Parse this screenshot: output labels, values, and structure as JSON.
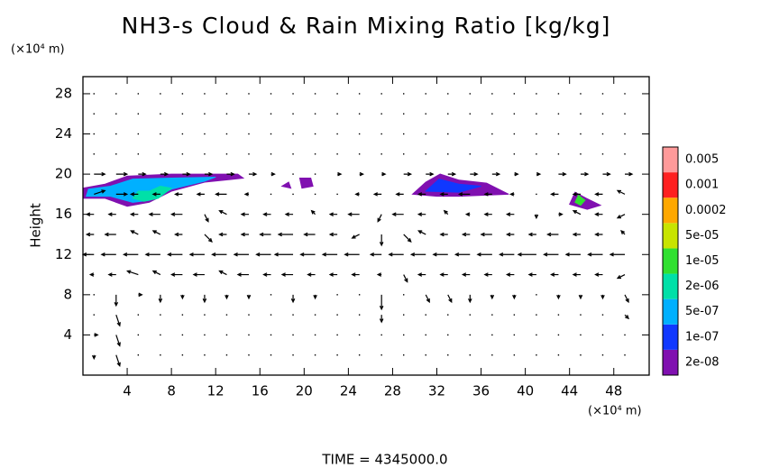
{
  "chart_data": {
    "type": "contour",
    "title": "NH3-s Cloud & Rain Mixing Ratio [kg/kg]",
    "y_label": "Height",
    "y_unit": "(×10⁴ m)",
    "x_unit": "(×10⁴ m)",
    "footer": "TIME  =  4345000.0",
    "xlim": [
      0,
      51.2
    ],
    "ylim": [
      0,
      29.7
    ],
    "xticks": [
      4,
      8,
      12,
      16,
      20,
      24,
      28,
      32,
      36,
      40,
      44,
      48
    ],
    "yticks": [
      4,
      8,
      12,
      16,
      20,
      24,
      28
    ],
    "levels": [
      {
        "value": 2e-08,
        "label": "2e-08"
      },
      {
        "value": 1e-07,
        "label": "1e-07"
      },
      {
        "value": 5e-07,
        "label": "5e-07"
      },
      {
        "value": 2e-06,
        "label": "2e-06"
      },
      {
        "value": 1e-05,
        "label": "1e-05"
      },
      {
        "value": 5e-05,
        "label": "5e-05"
      },
      0.0002,
      0.001,
      0.005
    ],
    "colors": [
      "#8010b0",
      "#1038ff",
      "#00b0ff",
      "#00e0a8",
      "#30e030",
      "#c8e400",
      "#ffa800",
      "#ff2020",
      "#ff9a9a"
    ],
    "clouds": [
      {
        "value": 2e-08,
        "x": [
          0,
          0,
          2,
          4,
          8,
          14,
          14.5,
          11,
          8,
          6,
          4,
          2
        ],
        "y": [
          17.6,
          18.6,
          19,
          19.8,
          20,
          20,
          19.6,
          19.2,
          18.3,
          17.2,
          16.8,
          17.6
        ]
      },
      {
        "value": 5e-07,
        "x": [
          0.3,
          0.5,
          2.5,
          4.5,
          8,
          12,
          11,
          8,
          6,
          4.5,
          2.5
        ],
        "y": [
          17.8,
          18.5,
          18.8,
          19.5,
          19.6,
          19.7,
          19.3,
          18.5,
          17.4,
          17.2,
          17.8
        ]
      },
      {
        "value": 2e-06,
        "x": [
          4.5,
          5,
          6,
          7,
          8,
          6.8,
          5.5
        ],
        "y": [
          17.6,
          18.3,
          18.3,
          18.8,
          18.6,
          17.6,
          17.3
        ]
      },
      {
        "value": 2e-08,
        "x": [
          18,
          18.6,
          18.8
        ],
        "y": [
          18.8,
          19.2,
          18.6
        ]
      },
      {
        "value": 2e-08,
        "x": [
          19.6,
          20.6,
          20.8,
          19.8
        ],
        "y": [
          19.6,
          19.6,
          18.8,
          18.6
        ]
      },
      {
        "value": 2e-08,
        "x": [
          29.8,
          31,
          32.3,
          34,
          36.5,
          38.5,
          34,
          32
        ],
        "y": [
          18,
          19.2,
          20,
          19.4,
          19.1,
          18,
          17.8,
          17.8
        ]
      },
      {
        "value": 1e-07,
        "x": [
          31,
          32.2,
          34,
          36,
          34
        ],
        "y": [
          18.3,
          19.5,
          19,
          18.8,
          18.2
        ]
      },
      {
        "value": 2e-08,
        "x": [
          44,
          44.5,
          45.5,
          46.8,
          45.6
        ],
        "y": [
          17,
          18.2,
          17.6,
          16.9,
          16.5
        ]
      },
      {
        "value": 1e-05,
        "x": [
          44.5,
          44.8,
          45.4,
          45
        ],
        "y": [
          17.2,
          17.9,
          17.4,
          16.9
        ]
      }
    ],
    "vectors": {
      "x": [
        1,
        3,
        5,
        7,
        9,
        11,
        13,
        15,
        17,
        19,
        21,
        23,
        25,
        27,
        29,
        31,
        33,
        35,
        37,
        39,
        41,
        43,
        45,
        47,
        49
      ],
      "y": [
        2,
        4,
        6,
        8,
        10,
        12,
        14,
        16,
        18,
        20,
        22,
        24,
        26,
        28
      ],
      "u": [
        [
          0,
          0.5,
          0,
          0,
          0,
          0,
          0,
          0,
          0,
          0,
          0,
          0,
          0,
          0,
          0,
          0,
          0,
          0,
          0,
          0,
          0,
          0,
          0,
          0,
          0
        ],
        [
          0.5,
          0.5,
          0,
          0,
          0,
          0,
          0,
          0,
          0,
          0,
          0,
          0,
          0,
          0,
          0,
          0,
          0,
          0,
          0,
          0,
          0,
          0,
          0,
          0,
          0
        ],
        [
          0,
          0.5,
          0,
          0,
          0,
          0,
          0,
          0,
          0,
          0,
          0,
          0,
          0,
          0,
          0,
          0,
          0,
          0,
          0,
          0,
          0,
          0,
          0,
          0,
          0.5
        ],
        [
          0,
          0,
          0.5,
          0,
          0,
          0,
          0,
          0,
          0,
          0,
          0,
          0,
          0,
          0,
          0,
          0.5,
          0.5,
          0,
          0,
          0,
          0,
          0,
          0,
          0,
          0.5
        ],
        [
          -0.5,
          -1,
          -1.5,
          -1,
          -1.5,
          -1.5,
          -1,
          -1.5,
          -1,
          -1.5,
          -1,
          -1,
          -1,
          -0.5,
          0.5,
          -1,
          -1,
          -1,
          -1,
          -1,
          -1,
          -1,
          -1,
          -1,
          -1
        ],
        [
          -1.5,
          -2,
          -2,
          -2,
          -2,
          -2,
          -2,
          -2,
          -2,
          -2.5,
          -2,
          -2,
          -2,
          -1.5,
          -2,
          -2,
          -2,
          -2,
          -2,
          -2,
          -2.5,
          -2,
          -2,
          -2,
          -2
        ],
        [
          -1,
          -1.5,
          -1,
          -1,
          -1,
          1,
          -1,
          -1,
          -1.5,
          -2,
          -1.5,
          -1,
          -1,
          0,
          1,
          -1,
          -1,
          -1,
          -1.5,
          -1,
          -1,
          -1.5,
          -1,
          -1,
          -0.5
        ],
        [
          -1,
          -1,
          -1,
          -1.5,
          -1.5,
          0.5,
          -1,
          -1,
          -1,
          -1,
          -0.5,
          -1,
          -1.5,
          -0.5,
          -1.5,
          -1,
          -0.5,
          -0.5,
          -1,
          -1,
          0,
          0.5,
          -1,
          -1,
          -1
        ],
        [
          1.5,
          1.5,
          -1,
          -1,
          -1,
          -1,
          -1.5,
          -0.5,
          0,
          0,
          0,
          0,
          -0.5,
          -1,
          -1,
          -1,
          -1,
          -1.5,
          -1,
          -0.5,
          0,
          -1,
          -1,
          -1,
          -1
        ],
        [
          1.5,
          1.5,
          1,
          1,
          1,
          1,
          1,
          1,
          0.5,
          0,
          0,
          0.5,
          0.5,
          0.5,
          1,
          1,
          1,
          1,
          1,
          0.5,
          0.5,
          1,
          1,
          1,
          1
        ],
        [
          0,
          0,
          0,
          0,
          0,
          0,
          0,
          0,
          0,
          0,
          0,
          0,
          0,
          0,
          0,
          0,
          0,
          0,
          0,
          0,
          0,
          0,
          0,
          0,
          0
        ],
        [
          0,
          0,
          0,
          0,
          0,
          0,
          0,
          0,
          0,
          0,
          0,
          0,
          0,
          0,
          0,
          0,
          0,
          0,
          0,
          0,
          0,
          0,
          0,
          0,
          0
        ],
        [
          0,
          0,
          0,
          0,
          0,
          0,
          0,
          0,
          0,
          0,
          0,
          0,
          0,
          0,
          0,
          0,
          0,
          0,
          0,
          0,
          0,
          0,
          0,
          0,
          0
        ],
        [
          0,
          0,
          0,
          0,
          0,
          0,
          0,
          0,
          0,
          0,
          0,
          0,
          0,
          0,
          0,
          0,
          0,
          0,
          0,
          0,
          0,
          0,
          0,
          0,
          0
        ]
      ],
      "v": [
        [
          -0.5,
          -1.5,
          0,
          0,
          0,
          0,
          0,
          0,
          0,
          0,
          0,
          0,
          0,
          0,
          0,
          0,
          0,
          0,
          0,
          0,
          0,
          0,
          0,
          0,
          0
        ],
        [
          0,
          -1.5,
          0,
          0,
          0,
          0,
          0,
          0,
          0,
          0,
          0,
          0,
          0,
          0,
          0,
          0,
          0,
          0,
          0,
          0,
          0,
          0,
          0,
          0,
          0
        ],
        [
          0,
          -1.5,
          0,
          0,
          0,
          0,
          0,
          0,
          0,
          0,
          0,
          0,
          0,
          -1,
          0,
          0,
          0,
          0,
          0,
          0,
          0,
          0,
          0,
          0,
          -0.5
        ],
        [
          0,
          -1.5,
          0,
          -1,
          -0.5,
          -1,
          -0.5,
          -0.5,
          0,
          -1,
          -0.5,
          0,
          0,
          -2,
          0,
          -1,
          -1,
          -1,
          -0.5,
          -0.5,
          0,
          -0.5,
          -0.5,
          -0.5,
          -1
        ],
        [
          0,
          0,
          0.5,
          0.5,
          0,
          0,
          0.5,
          0,
          0,
          0,
          0,
          0,
          0,
          0,
          -1,
          0,
          0,
          0,
          0,
          0,
          0,
          0,
          0,
          0,
          -0.5
        ],
        [
          0,
          0,
          0,
          0,
          0,
          0,
          0,
          0,
          0,
          0,
          0,
          0,
          0,
          0,
          0,
          0,
          0,
          0,
          0,
          0,
          0,
          0,
          0,
          0,
          0
        ],
        [
          0,
          0,
          0.5,
          0.5,
          0,
          -1,
          0,
          0,
          0,
          0,
          0,
          0,
          -0.5,
          -1.5,
          -1,
          0.5,
          0,
          0,
          0,
          0,
          0,
          0,
          0,
          0,
          0.5
        ],
        [
          0,
          0,
          0,
          0,
          0,
          -1,
          0.5,
          0,
          0,
          0,
          0.5,
          0,
          0,
          -1,
          0,
          0,
          0.5,
          0,
          0,
          0,
          -0.5,
          0,
          0.5,
          0,
          -0.5
        ],
        [
          0.5,
          0,
          0,
          0,
          0,
          0,
          0,
          0,
          0,
          0,
          0,
          0,
          0,
          0,
          0,
          0,
          0,
          0,
          0,
          0,
          0,
          0,
          0,
          0,
          0.5
        ],
        [
          0,
          0,
          0,
          0,
          0,
          0,
          0,
          0,
          0,
          0,
          0,
          0,
          0,
          0,
          0,
          0,
          0,
          0,
          0,
          0,
          0,
          0,
          0,
          0,
          0
        ],
        [
          0,
          0,
          0,
          0,
          0,
          0,
          0,
          0,
          0,
          0,
          0,
          0,
          0,
          0,
          0,
          0,
          0,
          0,
          0,
          0,
          0,
          0,
          0,
          0,
          0
        ],
        [
          0,
          0,
          0,
          0,
          0,
          0,
          0,
          0,
          0,
          0,
          0,
          0,
          0,
          0,
          0,
          0,
          0,
          0,
          0,
          0,
          0,
          0,
          0,
          0,
          0
        ],
        [
          0,
          0,
          0,
          0,
          0,
          0,
          0,
          0,
          0,
          0,
          0,
          0,
          0,
          0,
          0,
          0,
          0,
          0,
          0,
          0,
          0,
          0,
          0,
          0,
          0
        ],
        [
          0,
          0,
          0,
          0,
          0,
          0,
          0,
          0,
          0,
          0,
          0,
          0,
          0,
          0,
          0,
          0,
          0,
          0,
          0,
          0,
          0,
          0,
          0,
          0,
          0
        ]
      ]
    }
  }
}
